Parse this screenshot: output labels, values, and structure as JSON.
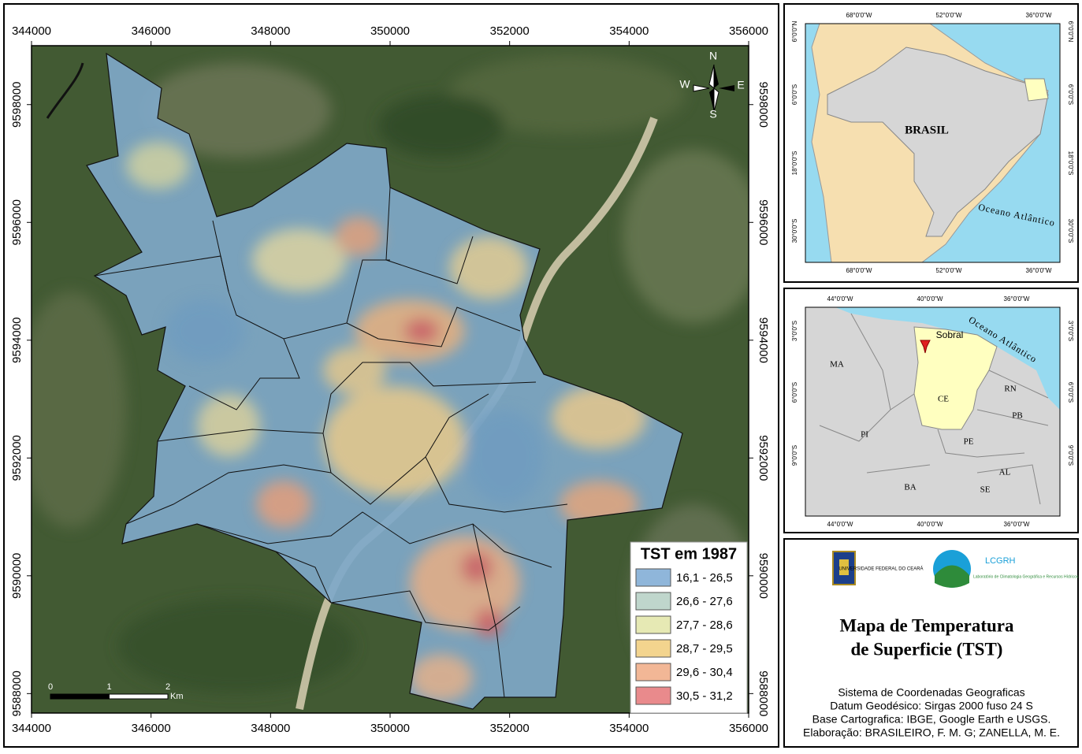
{
  "main_map": {
    "xlim": [
      344000,
      356000
    ],
    "xticks": [
      344000,
      346000,
      348000,
      350000,
      352000,
      354000,
      356000
    ],
    "ylim": [
      9587670,
      9599000
    ],
    "yticks": [
      9588000,
      9590000,
      9592000,
      9594000,
      9596000,
      9598000
    ],
    "compass": {
      "north": "N",
      "south": "S",
      "east": "E",
      "west": "W"
    },
    "scale_bar": {
      "ticks": [
        0,
        1,
        2
      ],
      "unit": "Km"
    },
    "legend": {
      "title": "TST em 1987",
      "classes": [
        {
          "label": "16,1 - 26,5",
          "color": "#8fb6da"
        },
        {
          "label": "26,6 - 27,6",
          "color": "#bfd6cc"
        },
        {
          "label": "27,7 - 28,6",
          "color": "#e6e9b4"
        },
        {
          "label": "28,7 - 29,5",
          "color": "#f3d48e"
        },
        {
          "label": "29,6 - 30,4",
          "color": "#f2b796"
        },
        {
          "label": "30,5 - 31,2",
          "color": "#e98a8c"
        }
      ]
    }
  },
  "inset_brazil": {
    "lon_labels": [
      "68°0'0\"W",
      "52°0'0\"W",
      "36°0'0\"W"
    ],
    "lat_labels": [
      "6°0'0\"N",
      "6°0'0\"S",
      "18°0'0\"S",
      "30°0'0\"S"
    ],
    "country": "BRASIL",
    "ocean": "Oceano Atlântico"
  },
  "inset_region": {
    "lon_labels": [
      "44°0'0\"W",
      "40°0'0\"W",
      "36°0'0\"W"
    ],
    "lat_labels": [
      "3°0'0\"S",
      "6°0'0\"S",
      "9°0'0\"S"
    ],
    "ocean": "Oceano Atlântico",
    "city": "Sobral",
    "states": [
      "MA",
      "CE",
      "RN",
      "PB",
      "PI",
      "PE",
      "AL",
      "BA",
      "SE"
    ]
  },
  "title_panel": {
    "university": "UNIVERSIDADE FEDERAL DO CEARÁ",
    "lab_acronym": "LCGRH",
    "lab_name": "Laboratório de Climatologia Geográfica e Recursos Hídricos",
    "title_lines": [
      "Mapa de Temperatura",
      "de Superficie (TST)"
    ],
    "credits": [
      "Sistema de Coordenadas Geograficas",
      "Datum Geodésico: Sirgas 2000 fuso 24 S",
      "Base Cartografica: IBGE, Google Earth e USGS.",
      "Elaboração: BRASILEIRO, F. M. G; ZANELLA, M. E."
    ]
  }
}
